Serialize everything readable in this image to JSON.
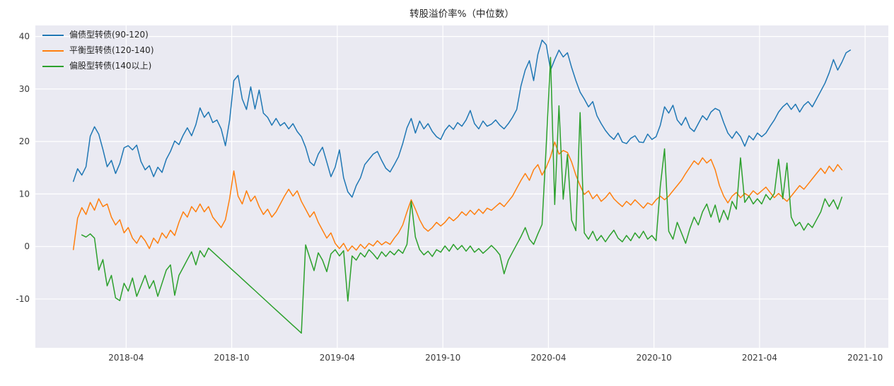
{
  "figure": {
    "background": "#ffffff"
  },
  "chart_data": {
    "type": "line",
    "title": "转股溢价率%（中位数）",
    "xlabel": "",
    "ylabel": "",
    "grid": true,
    "legend_position": "upper-left",
    "axes_background": "#eaeaf2",
    "grid_color": "#ffffff",
    "tick_label_color": "#3a3a3a",
    "xlim": [
      2017.82,
      2021.86
    ],
    "ylim": [
      -19.3,
      42.1
    ],
    "x_ticks": [
      {
        "v": 2018.25,
        "label": "2018-04"
      },
      {
        "v": 2018.75,
        "label": "2018-10"
      },
      {
        "v": 2019.25,
        "label": "2019-04"
      },
      {
        "v": 2019.75,
        "label": "2019-10"
      },
      {
        "v": 2020.25,
        "label": "2020-04"
      },
      {
        "v": 2020.75,
        "label": "2020-10"
      },
      {
        "v": 2021.25,
        "label": "2021-04"
      },
      {
        "v": 2021.75,
        "label": "2021-10"
      }
    ],
    "y_ticks": [
      {
        "v": -10,
        "label": "-10"
      },
      {
        "v": 0,
        "label": "0"
      },
      {
        "v": 10,
        "label": "10"
      },
      {
        "v": 20,
        "label": "20"
      },
      {
        "v": 30,
        "label": "30"
      },
      {
        "v": 40,
        "label": "40"
      }
    ],
    "series": [
      {
        "name": "偏债型转债(90-120)",
        "color": "#1f77b4",
        "x_start": 2018.0,
        "x_step": 0.02,
        "values": [
          12.4,
          14.8,
          13.6,
          15.2,
          21.0,
          22.8,
          21.4,
          18.5,
          15.2,
          16.4,
          13.9,
          15.8,
          18.8,
          19.2,
          18.4,
          19.3,
          16.2,
          14.6,
          15.4,
          13.3,
          15.1,
          14.1,
          16.6,
          18.1,
          20.1,
          19.4,
          21.2,
          22.6,
          21.1,
          23.2,
          26.4,
          24.6,
          25.6,
          23.6,
          24.1,
          22.4,
          19.2,
          24.0,
          31.6,
          32.6,
          28.1,
          26.1,
          30.4,
          26.2,
          29.8,
          25.4,
          24.6,
          23.1,
          24.4,
          23.0,
          23.6,
          22.4,
          23.4,
          21.9,
          20.9,
          18.9,
          16.1,
          15.4,
          17.6,
          18.9,
          16.1,
          13.3,
          15.1,
          18.4,
          13.1,
          10.4,
          9.4,
          11.6,
          13.1,
          15.6,
          16.6,
          17.6,
          18.1,
          16.4,
          14.9,
          14.2,
          15.6,
          17.1,
          19.6,
          22.6,
          24.4,
          21.6,
          23.9,
          22.4,
          23.4,
          21.9,
          20.9,
          20.4,
          22.1,
          23.1,
          22.3,
          23.6,
          22.9,
          24.1,
          25.9,
          23.4,
          22.4,
          23.9,
          22.9,
          23.3,
          24.1,
          23.1,
          22.4,
          23.4,
          24.6,
          26.1,
          30.6,
          33.6,
          35.4,
          31.6,
          36.6,
          39.3,
          38.4,
          33.6,
          35.6,
          37.4,
          36.1,
          36.9,
          34.1,
          31.6,
          29.4,
          28.1,
          26.6,
          27.6,
          24.9,
          23.4,
          22.1,
          21.1,
          20.4,
          21.6,
          19.9,
          19.6,
          20.6,
          21.1,
          19.9,
          19.8,
          21.4,
          20.4,
          20.9,
          23.1,
          26.6,
          25.4,
          26.9,
          24.1,
          23.1,
          24.6,
          22.6,
          21.9,
          23.4,
          24.9,
          24.1,
          25.6,
          26.3,
          25.9,
          23.6,
          21.6,
          20.6,
          21.9,
          20.9,
          19.1,
          21.1,
          20.3,
          21.6,
          20.9,
          21.6,
          22.9,
          24.1,
          25.6,
          26.6,
          27.3,
          26.1,
          27.1,
          25.6,
          26.9,
          27.6,
          26.6,
          28.1,
          29.6,
          31.1,
          33.1,
          35.6,
          33.6,
          35.1,
          36.9,
          37.4
        ]
      },
      {
        "name": "平衡型转债(120-140)",
        "color": "#ff7f0e",
        "x_start": 2018.0,
        "x_step": 0.02,
        "values": [
          -0.6,
          5.4,
          7.4,
          6.1,
          8.4,
          6.9,
          9.1,
          7.6,
          8.1,
          5.6,
          4.1,
          5.1,
          2.6,
          3.6,
          1.6,
          0.6,
          2.1,
          1.1,
          -0.4,
          1.6,
          0.6,
          2.6,
          1.6,
          3.1,
          2.1,
          4.6,
          6.6,
          5.6,
          7.6,
          6.6,
          8.1,
          6.6,
          7.6,
          5.6,
          4.6,
          3.6,
          5.1,
          9.1,
          14.4,
          9.6,
          8.1,
          10.6,
          8.6,
          9.6,
          7.6,
          6.1,
          7.1,
          5.6,
          6.6,
          8.1,
          9.6,
          10.9,
          9.6,
          10.6,
          8.6,
          7.1,
          5.6,
          6.6,
          4.6,
          3.1,
          1.6,
          2.6,
          0.6,
          -0.4,
          0.6,
          -0.9,
          0.1,
          -0.7,
          0.4,
          -0.4,
          0.6,
          0.1,
          1.1,
          0.3,
          0.9,
          0.4,
          1.6,
          2.6,
          4.1,
          6.6,
          8.9,
          7.1,
          5.1,
          3.6,
          2.9,
          3.6,
          4.6,
          3.9,
          4.6,
          5.6,
          4.9,
          5.6,
          6.6,
          5.9,
          6.9,
          6.1,
          7.1,
          6.3,
          7.3,
          6.9,
          7.6,
          8.3,
          7.6,
          8.6,
          9.6,
          11.1,
          12.6,
          13.9,
          12.6,
          14.6,
          15.6,
          13.6,
          15.1,
          17.1,
          19.9,
          17.6,
          18.3,
          17.9,
          16.1,
          13.6,
          11.6,
          9.9,
          10.6,
          9.1,
          9.9,
          8.6,
          9.3,
          10.3,
          9.1,
          8.3,
          7.6,
          8.6,
          7.9,
          8.9,
          8.1,
          7.3,
          8.3,
          7.9,
          8.9,
          9.6,
          8.9,
          9.6,
          10.6,
          11.6,
          12.6,
          13.9,
          15.1,
          16.3,
          15.6,
          16.9,
          15.9,
          16.6,
          14.6,
          11.6,
          9.6,
          8.3,
          9.6,
          10.3,
          9.3,
          10.1,
          9.6,
          10.6,
          9.9,
          10.6,
          11.3,
          10.3,
          9.3,
          10.1,
          9.3,
          8.6,
          9.6,
          10.6,
          11.6,
          10.9,
          11.9,
          12.9,
          13.9,
          14.9,
          13.9,
          15.3,
          14.3,
          15.6,
          14.6
        ]
      },
      {
        "name": "偏股型转债(140以上)",
        "color": "#2ca02c",
        "x_start": 2018.04,
        "x_step": 0.02,
        "values": [
          2.2,
          1.8,
          2.4,
          1.6,
          -4.5,
          -2.5,
          -7.5,
          -5.5,
          -9.8,
          -10.3,
          -7.0,
          -8.5,
          -6.0,
          -9.5,
          -7.5,
          -5.5,
          -8.0,
          -6.5,
          -9.5,
          -7.0,
          -4.5,
          -3.5,
          -9.3,
          -5.5,
          -4.0,
          -2.5,
          -1.0,
          -3.5,
          -0.8,
          -2.0,
          -0.3,
          -1.04,
          -1.77,
          -2.51,
          -3.25,
          -3.98,
          -4.72,
          -5.45,
          -6.19,
          -6.93,
          -7.66,
          -8.4,
          -9.14,
          -9.87,
          -10.61,
          -11.35,
          -12.08,
          -12.82,
          -13.55,
          -14.29,
          -15.03,
          -15.76,
          -16.5,
          0.3,
          -2.2,
          -4.6,
          -1.2,
          -2.6,
          -4.8,
          -1.4,
          -0.6,
          -1.8,
          -0.8,
          -10.4,
          -1.8,
          -2.6,
          -1.2,
          -2.0,
          -0.6,
          -1.4,
          -2.4,
          -1.0,
          -1.9,
          -0.9,
          -1.6,
          -0.6,
          -1.3,
          0.4,
          8.6,
          1.8,
          -0.6,
          -1.6,
          -0.9,
          -1.9,
          -0.6,
          -1.1,
          0.1,
          -0.9,
          0.4,
          -0.6,
          0.2,
          -0.9,
          0.1,
          -1.1,
          -0.4,
          -1.3,
          -0.6,
          0.2,
          -0.6,
          -1.6,
          -5.2,
          -2.6,
          -1.1,
          0.4,
          1.9,
          3.6,
          1.4,
          0.4,
          2.4,
          4.2,
          19.5,
          36.0,
          8.0,
          26.8,
          9.0,
          17.5,
          5.0,
          3.0,
          25.5,
          2.6,
          1.4,
          2.9,
          1.1,
          2.1,
          0.9,
          2.1,
          3.1,
          1.6,
          0.9,
          2.1,
          1.1,
          2.6,
          1.6,
          2.9,
          1.4,
          2.1,
          1.1,
          11.5,
          18.6,
          2.9,
          1.4,
          4.6,
          2.6,
          0.6,
          3.4,
          5.6,
          4.1,
          6.6,
          8.1,
          5.6,
          7.9,
          4.6,
          6.9,
          5.1,
          8.6,
          7.1,
          16.9,
          8.4,
          9.6,
          8.1,
          9.1,
          8.1,
          9.9,
          8.9,
          10.1,
          16.6,
          9.1,
          15.9,
          5.6,
          3.9,
          4.6,
          3.1,
          4.4,
          3.6,
          5.1,
          6.6,
          9.1,
          7.6,
          8.9,
          7.1,
          9.4
        ]
      }
    ]
  }
}
